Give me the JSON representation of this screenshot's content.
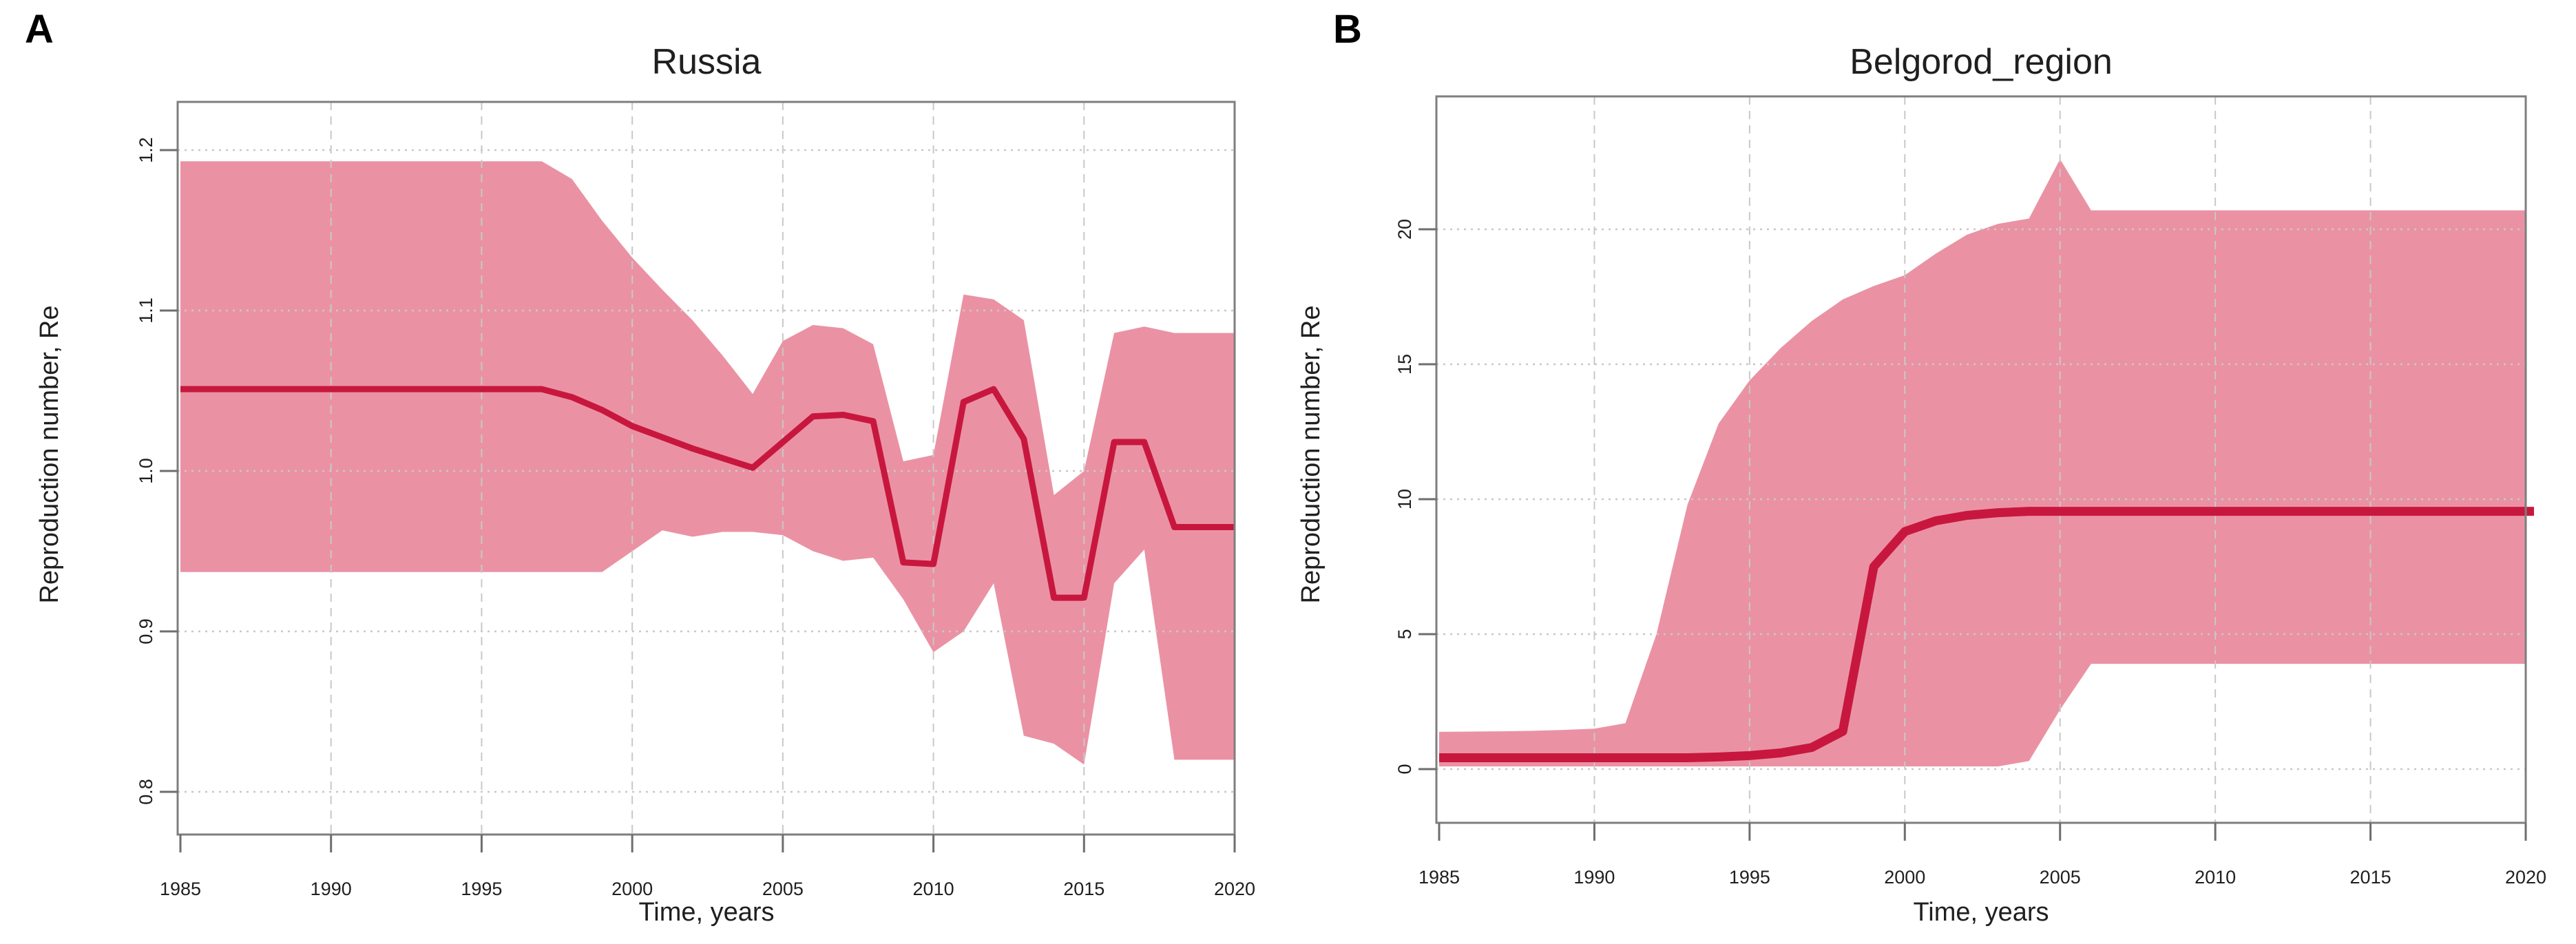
{
  "figure": {
    "band_color": "#EA92A3",
    "line_color": "#C8173E",
    "grid_color": "#C8C8C8",
    "frame_color": "#7E7E7E",
    "tick_color": "#6E6E6E",
    "text_color": "#1F1F1F"
  },
  "chart_data": [
    {
      "type": "area",
      "panel_letter": "A",
      "title": "Russia",
      "xlabel": "Time, years",
      "ylabel": "Reproduction number, Re",
      "grid": true,
      "legend": null,
      "xlim": [
        1984.8,
        2020.1
      ],
      "ylim": [
        0.774,
        1.23
      ],
      "xticks": [
        1985,
        1990,
        1995,
        2000,
        2005,
        2010,
        2015,
        2020
      ],
      "xtick_labels": [
        "1985",
        "1990",
        "1995",
        "2000",
        "2005",
        "2010",
        "2015",
        "2020"
      ],
      "yticks": [
        0.8,
        0.9,
        1.0,
        1.1,
        1.2
      ],
      "ytick_labels": [
        "0.8",
        "0.9",
        "1.0",
        "1.1",
        "1.2"
      ],
      "x": [
        1985,
        1986,
        1987,
        1988,
        1989,
        1990,
        1991,
        1992,
        1993,
        1994,
        1995,
        1996,
        1997,
        1998,
        1999,
        2000,
        2001,
        2002,
        2003,
        2004,
        2005,
        2006,
        2007,
        2008,
        2009,
        2010,
        2011,
        2012,
        2013,
        2014,
        2015,
        2016,
        2017,
        2018,
        2019,
        2020
      ],
      "series": [
        {
          "name": "median",
          "values": [
            1.051,
            1.051,
            1.051,
            1.051,
            1.051,
            1.051,
            1.051,
            1.051,
            1.051,
            1.051,
            1.051,
            1.051,
            1.051,
            1.046,
            1.038,
            1.028,
            1.021,
            1.014,
            1.008,
            1.002,
            1.018,
            1.034,
            1.035,
            1.031,
            0.943,
            0.942,
            1.043,
            1.051,
            1.02,
            0.921,
            0.921,
            1.018,
            1.018,
            0.965,
            0.965,
            0.965
          ]
        },
        {
          "name": "lower_band",
          "values": [
            0.937,
            0.937,
            0.937,
            0.937,
            0.937,
            0.937,
            0.937,
            0.937,
            0.937,
            0.937,
            0.937,
            0.937,
            0.937,
            0.937,
            0.937,
            0.95,
            0.963,
            0.959,
            0.962,
            0.962,
            0.96,
            0.95,
            0.944,
            0.946,
            0.92,
            0.887,
            0.9,
            0.93,
            0.835,
            0.83,
            0.817,
            0.93,
            0.951,
            0.82,
            0.82,
            0.82
          ]
        },
        {
          "name": "upper_band",
          "values": [
            1.193,
            1.193,
            1.193,
            1.193,
            1.193,
            1.193,
            1.193,
            1.193,
            1.193,
            1.193,
            1.193,
            1.193,
            1.193,
            1.182,
            1.156,
            1.133,
            1.113,
            1.094,
            1.072,
            1.048,
            1.081,
            1.091,
            1.089,
            1.079,
            1.006,
            1.01,
            1.11,
            1.107,
            1.094,
            0.985,
            1.0,
            1.086,
            1.09,
            1.086,
            1.086,
            1.086
          ]
        }
      ]
    },
    {
      "type": "area",
      "panel_letter": "B",
      "title": "Belgorod_region",
      "xlabel": "Time, years",
      "ylabel": "Reproduction number, Re",
      "grid": true,
      "legend": null,
      "xlim": [
        1984.8,
        2020.1
      ],
      "ylim": [
        -1.9,
        24.9
      ],
      "xticks": [
        1985,
        1990,
        1995,
        2000,
        2005,
        2010,
        2015,
        2020
      ],
      "xtick_labels": [
        "1985",
        "1990",
        "1995",
        "2000",
        "2005",
        "2010",
        "2015",
        "2020"
      ],
      "yticks": [
        0,
        5,
        10,
        15,
        20
      ],
      "ytick_labels": [
        "0",
        "5",
        "10",
        "15",
        "20"
      ],
      "x": [
        1985,
        1986,
        1987,
        1988,
        1989,
        1990,
        1991,
        1992,
        1993,
        1994,
        1995,
        1996,
        1997,
        1998,
        1999,
        2000,
        2001,
        2002,
        2003,
        2004,
        2005,
        2006,
        2007,
        2008,
        2009,
        2010,
        2011,
        2012,
        2013,
        2014,
        2015,
        2016,
        2017,
        2018,
        2019,
        2020
      ],
      "series": [
        {
          "name": "median",
          "values": [
            0.42,
            0.42,
            0.42,
            0.42,
            0.42,
            0.42,
            0.42,
            0.42,
            0.42,
            0.45,
            0.5,
            0.6,
            0.8,
            1.4,
            7.5,
            8.8,
            9.2,
            9.4,
            9.5,
            9.55,
            9.55,
            9.55,
            9.55,
            9.55,
            9.55,
            9.55,
            9.55,
            9.55,
            9.55,
            9.55,
            9.55,
            9.55,
            9.55,
            9.55,
            9.55,
            9.55
          ]
        },
        {
          "name": "lower_band",
          "values": [
            0.1,
            0.1,
            0.1,
            0.1,
            0.1,
            0.1,
            0.1,
            0.1,
            0.1,
            0.1,
            0.1,
            0.1,
            0.1,
            0.1,
            0.1,
            0.1,
            0.1,
            0.1,
            0.1,
            0.3,
            2.2,
            3.9,
            3.9,
            3.9,
            3.9,
            3.9,
            3.9,
            3.9,
            3.9,
            3.9,
            3.9,
            3.9,
            3.9,
            3.9,
            3.9,
            3.9
          ]
        },
        {
          "name": "upper_band",
          "values": [
            1.38,
            1.39,
            1.4,
            1.42,
            1.45,
            1.5,
            1.7,
            5.0,
            9.8,
            12.8,
            14.4,
            15.6,
            16.6,
            17.4,
            17.9,
            18.3,
            19.1,
            19.8,
            20.2,
            20.4,
            22.6,
            20.7,
            20.7,
            20.7,
            20.7,
            20.7,
            20.7,
            20.7,
            20.7,
            20.7,
            20.7,
            20.7,
            20.7,
            20.7,
            20.7,
            20.7
          ]
        }
      ]
    }
  ]
}
